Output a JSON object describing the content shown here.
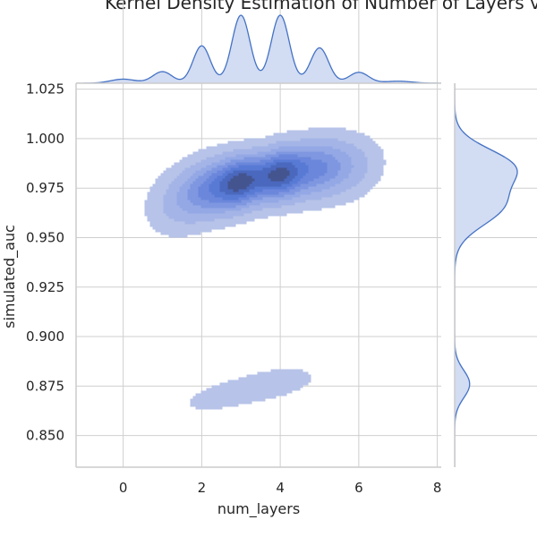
{
  "chart_data": {
    "type": "kde-joint",
    "title": "Kernel Density Estimation of Number of Layers vs AUC",
    "xlabel": "num_layers",
    "ylabel": "simulated_auc",
    "xlim": [
      -1.2,
      8.1
    ],
    "ylim": [
      0.834,
      1.028
    ],
    "x_ticks": [
      0,
      2,
      4,
      6,
      8
    ],
    "y_ticks": [
      0.85,
      0.875,
      0.9,
      0.925,
      0.95,
      0.975,
      1.0,
      1.025
    ],
    "x_tick_labels": [
      "0",
      "2",
      "4",
      "6",
      "8"
    ],
    "y_tick_labels": [
      "0.850",
      "0.875",
      "0.900",
      "0.925",
      "0.950",
      "0.975",
      "1.000",
      "1.025"
    ],
    "joint_components": [
      {
        "x": 1.4,
        "y": 0.968,
        "sx": 0.55,
        "sy": 0.011,
        "rho": 0.2,
        "w": 0.1
      },
      {
        "x": 2.2,
        "y": 0.975,
        "sx": 0.5,
        "sy": 0.01,
        "rho": 0.2,
        "w": 0.25
      },
      {
        "x": 3.0,
        "y": 0.978,
        "sx": 0.42,
        "sy": 0.009,
        "rho": 0.2,
        "w": 0.42
      },
      {
        "x": 4.0,
        "y": 0.982,
        "sx": 0.45,
        "sy": 0.009,
        "rho": 0.2,
        "w": 0.45
      },
      {
        "x": 5.0,
        "y": 0.985,
        "sx": 0.5,
        "sy": 0.01,
        "rho": 0.2,
        "w": 0.26
      },
      {
        "x": 5.9,
        "y": 0.985,
        "sx": 0.5,
        "sy": 0.01,
        "rho": 0.2,
        "w": 0.1
      },
      {
        "x": 2.4,
        "y": 0.869,
        "sx": 0.7,
        "sy": 0.0055,
        "rho": 0.45,
        "w": 0.05
      },
      {
        "x": 3.8,
        "y": 0.876,
        "sx": 0.8,
        "sy": 0.006,
        "rho": 0.45,
        "w": 0.07
      }
    ],
    "contour_levels": [
      0.06,
      0.17,
      0.3,
      0.42,
      0.54,
      0.66,
      0.78,
      0.9
    ],
    "contour_colors": [
      "#b7c3e8",
      "#a4b4e6",
      "#93a8e5",
      "#7f97e0",
      "#6b87db",
      "#587ad4",
      "#4a68bd",
      "#44548f"
    ],
    "marginal_x": {
      "peaks": [
        {
          "x": 0.0,
          "w": 0.06,
          "s": 0.32
        },
        {
          "x": 1.0,
          "w": 0.17,
          "s": 0.25
        },
        {
          "x": 2.0,
          "w": 0.55,
          "s": 0.22
        },
        {
          "x": 3.0,
          "w": 1.0,
          "s": 0.23
        },
        {
          "x": 4.0,
          "w": 1.0,
          "s": 0.23
        },
        {
          "x": 5.0,
          "w": 0.52,
          "s": 0.23
        },
        {
          "x": 6.0,
          "w": 0.16,
          "s": 0.25
        },
        {
          "x": 7.0,
          "w": 0.03,
          "s": 0.35
        }
      ]
    },
    "marginal_y": {
      "peaks": [
        {
          "y": 0.966,
          "w": 0.8,
          "s": 0.01
        },
        {
          "y": 0.986,
          "w": 0.95,
          "s": 0.009
        },
        {
          "y": 0.876,
          "w": 0.26,
          "s": 0.007
        }
      ]
    },
    "fill_color": "#d2dcf2",
    "line_color": "#4472c4"
  }
}
